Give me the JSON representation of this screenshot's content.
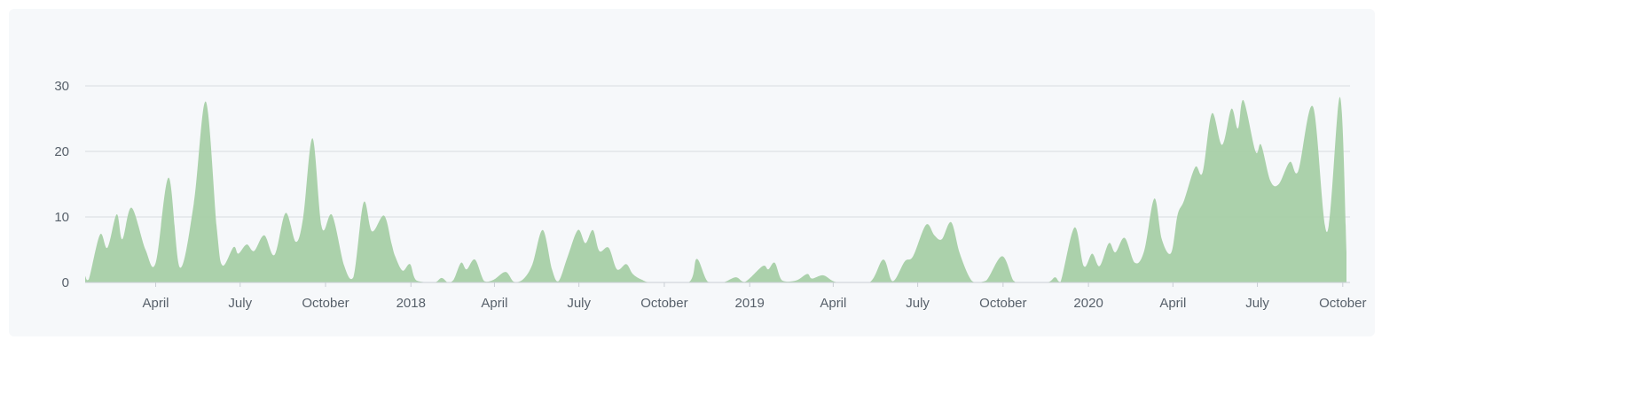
{
  "chart_data": {
    "type": "area",
    "title": "",
    "xlabel": "",
    "ylabel": "",
    "ylim": [
      0,
      30
    ],
    "yticks": [
      0,
      10,
      20,
      30
    ],
    "grid": true,
    "fill_color": "#a6cfa6",
    "grid_color": "#d8dce0",
    "x_tick_labels": [
      {
        "date": "2017-04-01",
        "label": "April"
      },
      {
        "date": "2017-07-01",
        "label": "July"
      },
      {
        "date": "2017-10-01",
        "label": "October"
      },
      {
        "date": "2018-01-01",
        "label": "2018"
      },
      {
        "date": "2018-04-01",
        "label": "April"
      },
      {
        "date": "2018-07-01",
        "label": "July"
      },
      {
        "date": "2018-10-01",
        "label": "October"
      },
      {
        "date": "2019-01-01",
        "label": "2019"
      },
      {
        "date": "2019-04-01",
        "label": "April"
      },
      {
        "date": "2019-07-01",
        "label": "July"
      },
      {
        "date": "2019-10-01",
        "label": "October"
      },
      {
        "date": "2020-01-01",
        "label": "2020"
      },
      {
        "date": "2020-04-01",
        "label": "April"
      },
      {
        "date": "2020-07-01",
        "label": "July"
      },
      {
        "date": "2020-10-01",
        "label": "October"
      }
    ],
    "points": [
      [
        "2017-01-15",
        1
      ],
      [
        "2017-01-19",
        0.5
      ],
      [
        "2017-01-31",
        7.3
      ],
      [
        "2017-02-08",
        5.3
      ],
      [
        "2017-02-18",
        10.4
      ],
      [
        "2017-02-24",
        6.6
      ],
      [
        "2017-03-06",
        11.4
      ],
      [
        "2017-03-21",
        5
      ],
      [
        "2017-04-01",
        3
      ],
      [
        "2017-04-15",
        16
      ],
      [
        "2017-04-27",
        2.3
      ],
      [
        "2017-05-12",
        12
      ],
      [
        "2017-05-25",
        27.6
      ],
      [
        "2017-06-06",
        8
      ],
      [
        "2017-06-12",
        2.6
      ],
      [
        "2017-06-24",
        5.4
      ],
      [
        "2017-06-29",
        4.4
      ],
      [
        "2017-07-08",
        5.8
      ],
      [
        "2017-07-16",
        4.8
      ],
      [
        "2017-07-27",
        7.2
      ],
      [
        "2017-08-07",
        4.2
      ],
      [
        "2017-08-19",
        10.6
      ],
      [
        "2017-08-30",
        6.2
      ],
      [
        "2017-09-07",
        10
      ],
      [
        "2017-09-17",
        22
      ],
      [
        "2017-09-27",
        8.4
      ],
      [
        "2017-10-08",
        10.3
      ],
      [
        "2017-10-21",
        2.6
      ],
      [
        "2017-10-31",
        0.8
      ],
      [
        "2017-11-11",
        12.2
      ],
      [
        "2017-11-20",
        7.8
      ],
      [
        "2017-12-03",
        10.2
      ],
      [
        "2017-12-11",
        6
      ],
      [
        "2017-12-15",
        4
      ],
      [
        "2017-12-23",
        1.8
      ],
      [
        "2017-12-31",
        2.8
      ],
      [
        "2018-01-07",
        0.3
      ],
      [
        "2018-01-26",
        0
      ],
      [
        "2018-02-03",
        0.7
      ],
      [
        "2018-02-10",
        0
      ],
      [
        "2018-02-16",
        0.4
      ],
      [
        "2018-02-24",
        3
      ],
      [
        "2018-03-02",
        2
      ],
      [
        "2018-03-11",
        3.5
      ],
      [
        "2018-03-21",
        0.2
      ],
      [
        "2018-03-31",
        0.4
      ],
      [
        "2018-04-13",
        1.6
      ],
      [
        "2018-04-22",
        0.1
      ],
      [
        "2018-05-02",
        0.5
      ],
      [
        "2018-05-12",
        2.8
      ],
      [
        "2018-05-23",
        8
      ],
      [
        "2018-06-02",
        2
      ],
      [
        "2018-06-09",
        0.2
      ],
      [
        "2018-06-19",
        4
      ],
      [
        "2018-06-30",
        8
      ],
      [
        "2018-07-08",
        6
      ],
      [
        "2018-07-16",
        8
      ],
      [
        "2018-07-23",
        4.8
      ],
      [
        "2018-08-02",
        5.3
      ],
      [
        "2018-08-11",
        2
      ],
      [
        "2018-08-21",
        2.8
      ],
      [
        "2018-08-28",
        1.3
      ],
      [
        "2018-09-07",
        0.4
      ],
      [
        "2018-09-18",
        0
      ],
      [
        "2018-10-27",
        0
      ],
      [
        "2018-11-05",
        3.6
      ],
      [
        "2018-11-17",
        0.1
      ],
      [
        "2018-12-03",
        0
      ],
      [
        "2018-12-17",
        0.8
      ],
      [
        "2018-12-27",
        0.1
      ],
      [
        "2019-01-15",
        2.5
      ],
      [
        "2019-01-21",
        2
      ],
      [
        "2019-01-28",
        3
      ],
      [
        "2019-02-05",
        0.3
      ],
      [
        "2019-02-20",
        0.3
      ],
      [
        "2019-03-04",
        1.3
      ],
      [
        "2019-03-09",
        0.6
      ],
      [
        "2019-03-21",
        1.1
      ],
      [
        "2019-04-01",
        0.2
      ],
      [
        "2019-04-11",
        0
      ],
      [
        "2019-05-10",
        0
      ],
      [
        "2019-05-25",
        3.5
      ],
      [
        "2019-06-04",
        0.2
      ],
      [
        "2019-06-17",
        3.2
      ],
      [
        "2019-06-26",
        4
      ],
      [
        "2019-07-10",
        8.8
      ],
      [
        "2019-07-19",
        7.2
      ],
      [
        "2019-07-27",
        6.6
      ],
      [
        "2019-08-06",
        9.2
      ],
      [
        "2019-08-15",
        4.6
      ],
      [
        "2019-08-25",
        1
      ],
      [
        "2019-09-01",
        0
      ],
      [
        "2019-09-13",
        0.3
      ],
      [
        "2019-09-30",
        4
      ],
      [
        "2019-10-12",
        0.3
      ],
      [
        "2019-10-19",
        0
      ],
      [
        "2019-11-17",
        0
      ],
      [
        "2019-11-26",
        0.8
      ],
      [
        "2019-12-02",
        0.1
      ],
      [
        "2019-12-17",
        8.4
      ],
      [
        "2019-12-27",
        2.5
      ],
      [
        "2020-01-05",
        4.4
      ],
      [
        "2020-01-13",
        2.5
      ],
      [
        "2020-01-23",
        6
      ],
      [
        "2020-01-30",
        4.6
      ],
      [
        "2020-02-09",
        6.8
      ],
      [
        "2020-02-20",
        3
      ],
      [
        "2020-03-01",
        4.8
      ],
      [
        "2020-03-12",
        12.8
      ],
      [
        "2020-03-20",
        6.6
      ],
      [
        "2020-03-30",
        4.5
      ],
      [
        "2020-04-06",
        10.3
      ],
      [
        "2020-04-13",
        12.5
      ],
      [
        "2020-04-25",
        17.6
      ],
      [
        "2020-05-03",
        16.8
      ],
      [
        "2020-05-13",
        25.8
      ],
      [
        "2020-05-24",
        21
      ],
      [
        "2020-06-03",
        26.5
      ],
      [
        "2020-06-10",
        23.5
      ],
      [
        "2020-06-16",
        27.8
      ],
      [
        "2020-06-29",
        20
      ],
      [
        "2020-07-05",
        21
      ],
      [
        "2020-07-15",
        15.5
      ],
      [
        "2020-07-24",
        15
      ],
      [
        "2020-08-05",
        18.4
      ],
      [
        "2020-08-14",
        17
      ],
      [
        "2020-08-30",
        26.8
      ],
      [
        "2020-09-14",
        7.7
      ],
      [
        "2020-09-28",
        28.3
      ],
      [
        "2020-10-05",
        4.6
      ]
    ]
  }
}
